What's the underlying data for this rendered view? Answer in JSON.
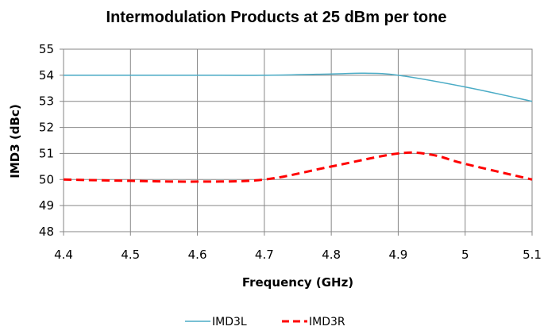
{
  "chart_data": {
    "type": "line",
    "title": "Intermodulation Products at 25 dBm per tone",
    "xlabel": "Frequency (GHz)",
    "ylabel": "IMD3 (dBc)",
    "xlim": [
      4.4,
      5.1
    ],
    "ylim": [
      48,
      55
    ],
    "x_ticks": [
      "4.4",
      "4.5",
      "4.6",
      "4.7",
      "4.8",
      "4.9",
      "5",
      "5.1"
    ],
    "y_ticks": [
      "48",
      "49",
      "50",
      "51",
      "52",
      "53",
      "54",
      "55"
    ],
    "grid": true,
    "legend_position": "bottom",
    "series": [
      {
        "name": "IMD3L",
        "color": "#4bacc6",
        "line_style": "solid",
        "x": [
          4.4,
          4.5,
          4.6,
          4.7,
          4.8,
          4.85,
          4.9,
          5.0,
          5.1
        ],
        "y": [
          54.0,
          54.0,
          54.0,
          54.0,
          54.05,
          54.08,
          54.0,
          53.55,
          53.0
        ]
      },
      {
        "name": "IMD3R",
        "color": "#ff0000",
        "line_style": "dashed",
        "x": [
          4.4,
          4.5,
          4.6,
          4.7,
          4.8,
          4.9,
          4.95,
          5.0,
          5.1
        ],
        "y": [
          50.0,
          49.95,
          49.92,
          50.0,
          50.5,
          51.0,
          50.95,
          50.6,
          50.0
        ]
      }
    ]
  }
}
